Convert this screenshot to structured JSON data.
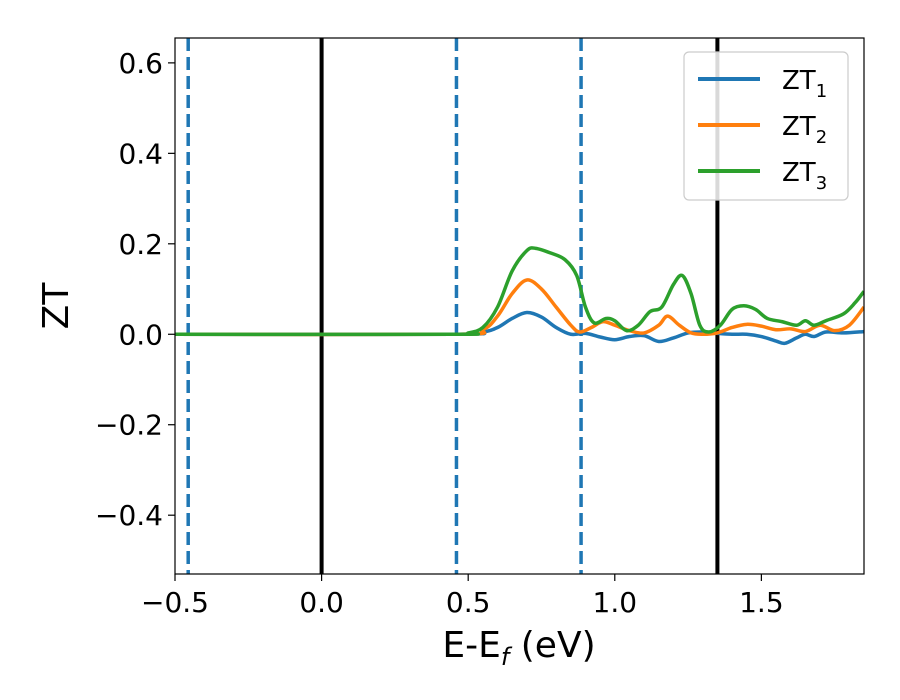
{
  "chart_data": {
    "type": "line",
    "xlabel": {
      "main": "E-E",
      "sub": "f",
      "suffix": " (eV)"
    },
    "ylabel": "ZT",
    "xlim": [
      -0.5,
      1.85
    ],
    "ylim": [
      -0.53,
      0.655
    ],
    "x_ticks": [
      {
        "value": -0.5,
        "label": "−0.5"
      },
      {
        "value": 0.0,
        "label": "0.0"
      },
      {
        "value": 0.5,
        "label": "0.5"
      },
      {
        "value": 1.0,
        "label": "1.0"
      },
      {
        "value": 1.5,
        "label": "1.5"
      }
    ],
    "y_ticks": [
      {
        "value": -0.4,
        "label": "−0.4"
      },
      {
        "value": -0.2,
        "label": "−0.2"
      },
      {
        "value": 0.0,
        "label": "0.0"
      },
      {
        "value": 0.2,
        "label": "0.2"
      },
      {
        "value": 0.4,
        "label": "0.4"
      },
      {
        "value": 0.6,
        "label": "0.6"
      }
    ],
    "grid": false,
    "legend_position": "top-right",
    "vlines": [
      {
        "x": -0.455,
        "style": "dashed",
        "color": "#1f77b4"
      },
      {
        "x": 0.0,
        "style": "solid",
        "color": "#000000"
      },
      {
        "x": 0.46,
        "style": "dashed",
        "color": "#1f77b4"
      },
      {
        "x": 0.885,
        "style": "dashed",
        "color": "#1f77b4"
      },
      {
        "x": 1.35,
        "style": "solid",
        "color": "#000000"
      }
    ],
    "series": [
      {
        "name": "ZT",
        "sub": "1",
        "color": "#1f77b4",
        "points": [
          [
            -0.5,
            0.0
          ],
          [
            0.45,
            0.0
          ],
          [
            0.55,
            0.005
          ],
          [
            0.6,
            0.015
          ],
          [
            0.65,
            0.035
          ],
          [
            0.7,
            0.048
          ],
          [
            0.75,
            0.038
          ],
          [
            0.8,
            0.015
          ],
          [
            0.85,
            0.0
          ],
          [
            0.9,
            0.002
          ],
          [
            0.95,
            -0.006
          ],
          [
            1.0,
            -0.012
          ],
          [
            1.05,
            -0.005
          ],
          [
            1.1,
            -0.003
          ],
          [
            1.15,
            -0.016
          ],
          [
            1.2,
            -0.008
          ],
          [
            1.25,
            0.003
          ],
          [
            1.3,
            0.005
          ],
          [
            1.35,
            0.002
          ],
          [
            1.4,
            0.0
          ],
          [
            1.45,
            0.0
          ],
          [
            1.5,
            -0.005
          ],
          [
            1.55,
            -0.015
          ],
          [
            1.58,
            -0.02
          ],
          [
            1.62,
            -0.008
          ],
          [
            1.65,
            0.0
          ],
          [
            1.68,
            -0.005
          ],
          [
            1.72,
            0.005
          ],
          [
            1.78,
            0.003
          ],
          [
            1.85,
            0.006
          ]
        ]
      },
      {
        "name": "ZT",
        "sub": "2",
        "color": "#ff7f0e",
        "points": [
          [
            -0.5,
            0.0
          ],
          [
            0.45,
            0.0
          ],
          [
            0.55,
            0.01
          ],
          [
            0.6,
            0.04
          ],
          [
            0.65,
            0.09
          ],
          [
            0.7,
            0.12
          ],
          [
            0.75,
            0.1
          ],
          [
            0.8,
            0.06
          ],
          [
            0.85,
            0.02
          ],
          [
            0.88,
            0.005
          ],
          [
            0.92,
            0.015
          ],
          [
            0.96,
            0.028
          ],
          [
            1.0,
            0.02
          ],
          [
            1.05,
            0.008
          ],
          [
            1.1,
            0.003
          ],
          [
            1.15,
            0.02
          ],
          [
            1.18,
            0.04
          ],
          [
            1.22,
            0.02
          ],
          [
            1.26,
            0.003
          ],
          [
            1.3,
            0.0
          ],
          [
            1.35,
            0.003
          ],
          [
            1.4,
            0.015
          ],
          [
            1.45,
            0.022
          ],
          [
            1.5,
            0.018
          ],
          [
            1.55,
            0.01
          ],
          [
            1.6,
            0.012
          ],
          [
            1.65,
            0.006
          ],
          [
            1.7,
            0.02
          ],
          [
            1.75,
            0.008
          ],
          [
            1.8,
            0.02
          ],
          [
            1.85,
            0.06
          ]
        ]
      },
      {
        "name": "ZT",
        "sub": "3",
        "color": "#2ca02c",
        "points": [
          [
            -0.5,
            0.0
          ],
          [
            0.45,
            0.0
          ],
          [
            0.5,
            0.003
          ],
          [
            0.55,
            0.015
          ],
          [
            0.6,
            0.06
          ],
          [
            0.65,
            0.14
          ],
          [
            0.7,
            0.185
          ],
          [
            0.73,
            0.19
          ],
          [
            0.78,
            0.18
          ],
          [
            0.83,
            0.165
          ],
          [
            0.87,
            0.13
          ],
          [
            0.9,
            0.06
          ],
          [
            0.93,
            0.025
          ],
          [
            0.97,
            0.035
          ],
          [
            1.0,
            0.03
          ],
          [
            1.04,
            0.008
          ],
          [
            1.08,
            0.02
          ],
          [
            1.12,
            0.05
          ],
          [
            1.16,
            0.06
          ],
          [
            1.2,
            0.11
          ],
          [
            1.23,
            0.13
          ],
          [
            1.26,
            0.09
          ],
          [
            1.29,
            0.02
          ],
          [
            1.32,
            0.005
          ],
          [
            1.36,
            0.02
          ],
          [
            1.4,
            0.055
          ],
          [
            1.44,
            0.063
          ],
          [
            1.48,
            0.055
          ],
          [
            1.52,
            0.035
          ],
          [
            1.57,
            0.028
          ],
          [
            1.62,
            0.02
          ],
          [
            1.65,
            0.03
          ],
          [
            1.68,
            0.02
          ],
          [
            1.72,
            0.03
          ],
          [
            1.78,
            0.045
          ],
          [
            1.82,
            0.07
          ],
          [
            1.85,
            0.095
          ]
        ]
      }
    ]
  }
}
